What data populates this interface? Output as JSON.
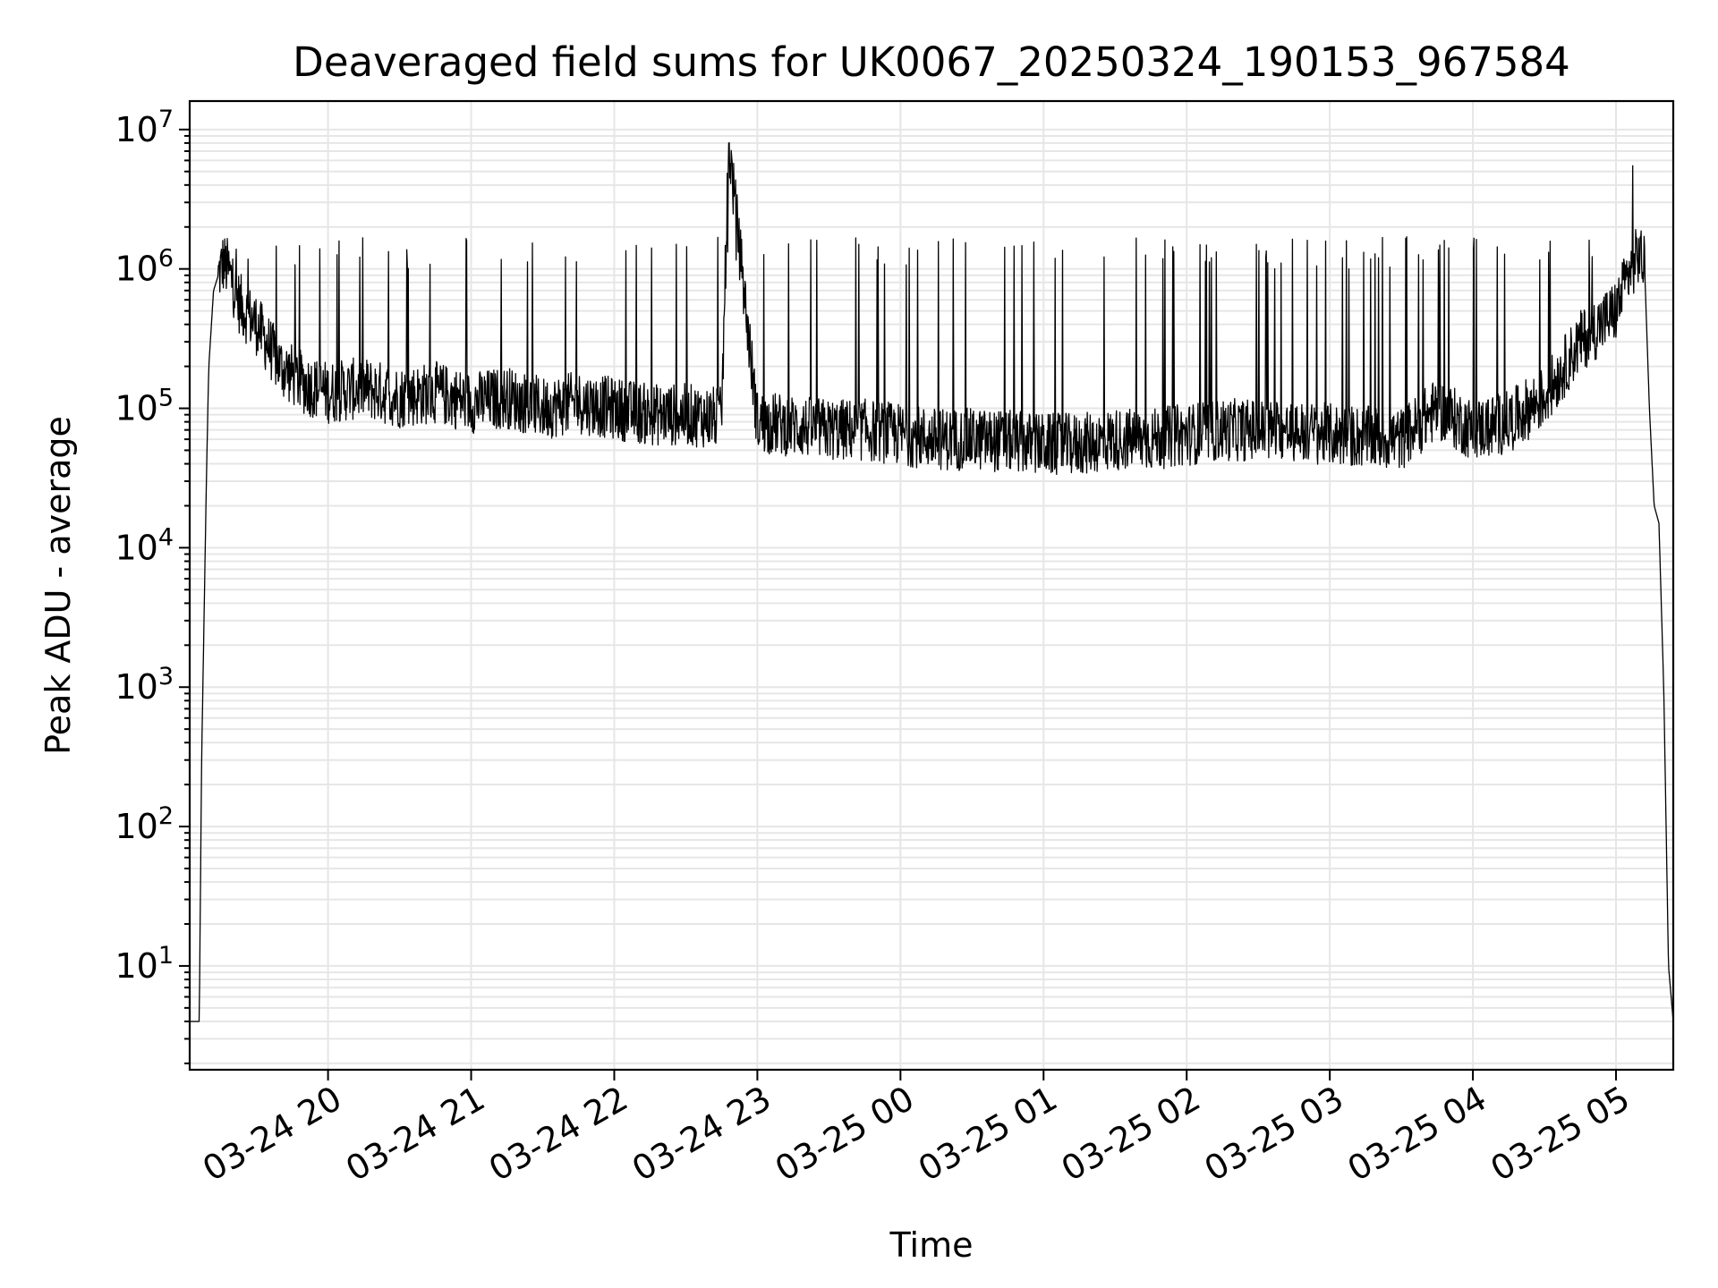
{
  "chart_data": {
    "type": "line",
    "title": "Deaveraged field sums for UK0067_20250324_190153_967584",
    "xlabel": "Time",
    "ylabel": "Peak ADU - average",
    "yscale": "log",
    "ylim": [
      1.8,
      16000000
    ],
    "xlim": [
      "2025-03-24 19:02",
      "2025-03-25 05:24"
    ],
    "grid": true,
    "series_color": "#000000",
    "grid_color": "#e6e6e6",
    "x_ticks": [
      {
        "value": "2025-03-24 20:00",
        "label": "03-24 20"
      },
      {
        "value": "2025-03-24 21:00",
        "label": "03-24 21"
      },
      {
        "value": "2025-03-24 22:00",
        "label": "03-24 22"
      },
      {
        "value": "2025-03-24 23:00",
        "label": "03-24 23"
      },
      {
        "value": "2025-03-25 00:00",
        "label": "03-25 00"
      },
      {
        "value": "2025-03-25 01:00",
        "label": "03-25 01"
      },
      {
        "value": "2025-03-25 02:00",
        "label": "03-25 02"
      },
      {
        "value": "2025-03-25 03:00",
        "label": "03-25 03"
      },
      {
        "value": "2025-03-25 04:00",
        "label": "03-25 04"
      },
      {
        "value": "2025-03-25 05:00",
        "label": "03-25 05"
      }
    ],
    "y_ticks": [
      {
        "value": 10,
        "base": "10",
        "exp": "1"
      },
      {
        "value": 100,
        "base": "10",
        "exp": "2"
      },
      {
        "value": 1000,
        "base": "10",
        "exp": "3"
      },
      {
        "value": 10000,
        "base": "10",
        "exp": "4"
      },
      {
        "value": 100000,
        "base": "10",
        "exp": "5"
      },
      {
        "value": 1000000,
        "base": "10",
        "exp": "6"
      },
      {
        "value": 10000000,
        "base": "10",
        "exp": "7"
      }
    ],
    "series": [
      {
        "x": [
          "2025-03-24 19:02",
          "2025-03-24 19:06",
          "2025-03-24 19:07",
          "2025-03-24 19:08",
          "2025-03-24 19:09",
          "2025-03-24 19:10",
          "2025-03-24 19:12",
          "2025-03-24 19:14",
          "2025-03-24 19:16",
          "2025-03-24 19:18",
          "2025-03-24 19:20",
          "2025-03-24 19:22",
          "2025-03-24 19:25",
          "2025-03-24 19:30",
          "2025-03-24 19:40",
          "2025-03-24 19:50",
          "2025-03-24 20:00",
          "2025-03-24 20:15",
          "2025-03-24 20:30",
          "2025-03-24 20:45",
          "2025-03-24 21:00",
          "2025-03-24 21:15",
          "2025-03-24 21:30",
          "2025-03-24 21:45",
          "2025-03-24 22:00",
          "2025-03-24 22:15",
          "2025-03-24 22:30",
          "2025-03-24 22:45",
          "2025-03-24 22:48",
          "2025-03-24 23:00",
          "2025-03-24 23:15",
          "2025-03-24 23:30",
          "2025-03-24 23:45",
          "2025-03-25 00:00",
          "2025-03-25 00:15",
          "2025-03-25 00:30",
          "2025-03-25 00:45",
          "2025-03-25 01:00",
          "2025-03-25 01:15",
          "2025-03-25 01:30",
          "2025-03-25 01:45",
          "2025-03-25 02:00",
          "2025-03-25 02:15",
          "2025-03-25 02:30",
          "2025-03-25 02:45",
          "2025-03-25 03:00",
          "2025-03-25 03:15",
          "2025-03-25 03:30",
          "2025-03-25 03:45",
          "2025-03-25 04:00",
          "2025-03-25 04:15",
          "2025-03-25 04:30",
          "2025-03-25 04:45",
          "2025-03-25 05:00",
          "2025-03-25 05:06",
          "2025-03-25 05:10",
          "2025-03-25 05:12",
          "2025-03-25 05:14",
          "2025-03-25 05:16",
          "2025-03-25 05:18",
          "2025-03-25 05:20",
          "2025-03-25 05:22",
          "2025-03-25 05:24"
        ],
        "y": [
          4,
          4,
          300,
          3000,
          30000,
          200000,
          700000,
          900000,
          1100000,
          1000000,
          800000,
          600000,
          500000,
          400000,
          200000,
          150000,
          130000,
          140000,
          120000,
          130000,
          110000,
          120000,
          100000,
          110000,
          100000,
          90000,
          90000,
          85000,
          8000000,
          80000,
          75000,
          70000,
          70000,
          65000,
          60000,
          60000,
          58000,
          55000,
          55000,
          60000,
          60000,
          65000,
          70000,
          70000,
          68000,
          65000,
          62000,
          60000,
          100000,
          70000,
          80000,
          120000,
          300000,
          500000,
          1000000,
          1300000,
          1000000,
          100000,
          20000,
          15000,
          1000,
          10,
          4
        ],
        "spikes": [
          {
            "x": "2025-03-24 22:48",
            "y": 8000000
          },
          {
            "x": "2025-03-25 05:07",
            "y": 5500000
          }
        ]
      }
    ]
  }
}
